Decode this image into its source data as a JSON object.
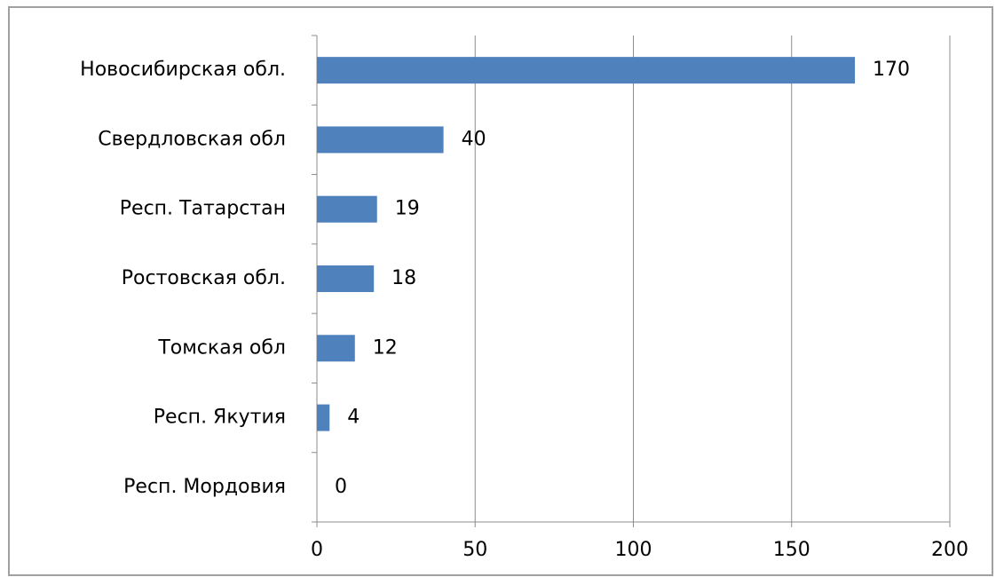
{
  "chart_data": {
    "type": "barh",
    "categories": [
      "Новосибирская обл.",
      "Свердловская обл",
      "Респ. Татарстан",
      "Ростовская обл.",
      "Томская обл",
      "Респ. Якутия",
      "Респ. Мордовия"
    ],
    "values": [
      170,
      40,
      19,
      18,
      12,
      4,
      0
    ],
    "color": "#4f81bd",
    "xlim": [
      0,
      200
    ],
    "xticks": [
      0,
      50,
      100,
      150,
      200
    ],
    "grid": true
  }
}
